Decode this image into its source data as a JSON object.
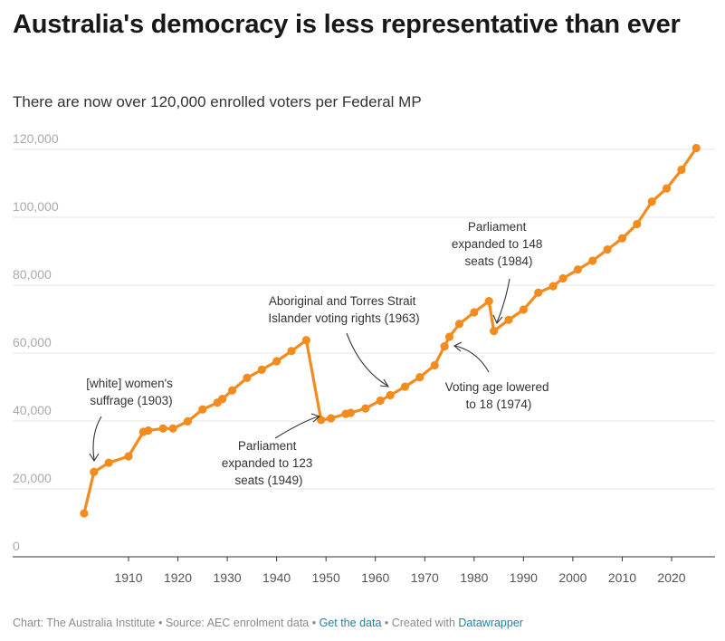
{
  "header": {
    "title": "Australia's democracy is less representative than ever",
    "subtitle": "There are now over 120,000 enrolled voters per Federal MP"
  },
  "footer": {
    "chart_credit": "Chart: The Australia Institute",
    "sep": " • ",
    "source": "Source: AEC enrolment data",
    "data_link": "Get the data",
    "created_prefix": "Created with ",
    "tool_link": "Datawrapper"
  },
  "colors": {
    "line": "#f28c1e",
    "grid": "#e6e6e6",
    "axis": "#333333",
    "tick_text": "#555555",
    "ytick_text": "#aaaaaa"
  },
  "chart_data": {
    "type": "line",
    "title": "Australia's democracy is less representative than ever",
    "subtitle": "There are now over 120,000 enrolled voters per Federal MP",
    "xlim": [
      1901,
      2025
    ],
    "ylim": [
      0,
      120000
    ],
    "x_ticks": [
      1910,
      1920,
      1930,
      1940,
      1950,
      1960,
      1970,
      1980,
      1990,
      2000,
      2010,
      2020
    ],
    "y_ticks": [
      0,
      20000,
      40000,
      60000,
      80000,
      100000,
      120000
    ],
    "y_tick_labels": [
      "0",
      "20,000",
      "40,000",
      "60,000",
      "80,000",
      "100,000",
      "120,000"
    ],
    "grid": true,
    "series": [
      {
        "x": [
          1901,
          1903,
          1906,
          1910,
          1913,
          1914,
          1917,
          1919,
          1922,
          1925,
          1928,
          1929,
          1931,
          1934,
          1937,
          1940,
          1943,
          1946,
          1949,
          1951,
          1954,
          1955,
          1958,
          1961,
          1963,
          1966,
          1969,
          1972,
          1974,
          1975,
          1977,
          1980,
          1983,
          1984,
          1987,
          1990,
          1993,
          1996,
          1998,
          2001,
          2004,
          2007,
          2010,
          2013,
          2016,
          2019,
          2022,
          2025
        ],
        "y": [
          12800,
          25000,
          27700,
          29600,
          36800,
          37200,
          37800,
          37800,
          39900,
          43400,
          45400,
          46500,
          49000,
          52700,
          55100,
          57600,
          60600,
          63800,
          40300,
          40800,
          42100,
          42400,
          43700,
          46000,
          47600,
          50100,
          52900,
          56400,
          62000,
          64800,
          68600,
          72000,
          75300,
          66500,
          69800,
          72800,
          77800,
          79700,
          82000,
          84600,
          87200,
          90500,
          93800,
          98000,
          104600,
          108500,
          114000,
          120400
        ]
      }
    ],
    "annotations": [
      {
        "lines": [
          "[white] women's",
          "suffrage (1903)"
        ],
        "year": 1903
      },
      {
        "lines": [
          "Parliament",
          "expanded to 123",
          "seats (1949)"
        ],
        "year": 1949
      },
      {
        "lines": [
          "Aboriginal and Torres Strait",
          "Islander voting rights (1963)"
        ],
        "year": 1963
      },
      {
        "lines": [
          "Voting age lowered",
          "to 18 (1974)"
        ],
        "year": 1974
      },
      {
        "lines": [
          "Parliament",
          "expanded to 148",
          "seats (1984)"
        ],
        "year": 1984
      }
    ]
  }
}
